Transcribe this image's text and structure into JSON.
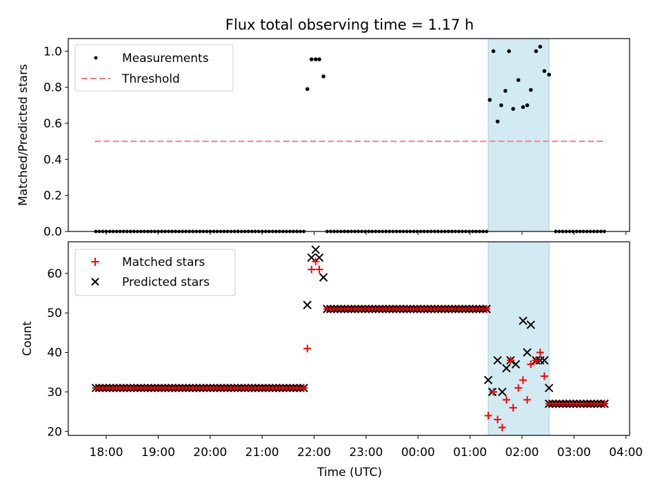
{
  "title": "Flux total observing time = 1.17 h",
  "xlabel": "Time (UTC)",
  "x_ticks": [
    "18:00",
    "19:00",
    "20:00",
    "21:00",
    "22:00",
    "23:00",
    "00:00",
    "01:00",
    "02:00",
    "03:00",
    "04:00"
  ],
  "colors": {
    "shade": "#add8e6",
    "matched": "#ff0000",
    "predicted": "#000000",
    "threshold": "#ff7f7f",
    "measurement": "#000000"
  },
  "chart_data": [
    {
      "type": "scatter",
      "ylabel": "Matched/Predicted stars",
      "ylim": [
        0,
        1.07
      ],
      "yticks": [
        "0.0",
        "0.2",
        "0.4",
        "0.6",
        "0.8",
        "1.0"
      ],
      "legend": [
        "Measurements",
        "Threshold"
      ],
      "legend_position": "top-left",
      "threshold": 0.5,
      "threshold_range_hours": [
        17.78,
        27.62
      ],
      "shaded_range_hours": [
        25.35,
        26.52
      ],
      "segments": {
        "zeros_before": {
          "start_hour": 17.8,
          "step": 0.0667,
          "count": 61,
          "value": 0
        },
        "zeros_middle": {
          "start_hour": 22.25,
          "step": 0.0667,
          "count": 47,
          "value": 0
        },
        "zeros_after": {
          "start_hour": 26.65,
          "step": 0.0667,
          "count": 15,
          "value": 0
        }
      },
      "points": [
        {
          "x": 21.87,
          "y": 0.79
        },
        {
          "x": 21.95,
          "y": 0.955
        },
        {
          "x": 22.03,
          "y": 0.955
        },
        {
          "x": 22.1,
          "y": 0.955
        },
        {
          "x": 22.18,
          "y": 0.86
        },
        {
          "x": 25.38,
          "y": 0.73
        },
        {
          "x": 25.45,
          "y": 1.0
        },
        {
          "x": 25.53,
          "y": 0.61
        },
        {
          "x": 25.6,
          "y": 0.7
        },
        {
          "x": 25.68,
          "y": 0.78
        },
        {
          "x": 25.75,
          "y": 1.0
        },
        {
          "x": 25.83,
          "y": 0.68
        },
        {
          "x": 25.93,
          "y": 0.84
        },
        {
          "x": 26.02,
          "y": 0.69
        },
        {
          "x": 26.1,
          "y": 0.7
        },
        {
          "x": 26.17,
          "y": 0.785
        },
        {
          "x": 26.27,
          "y": 1.0
        },
        {
          "x": 26.35,
          "y": 1.025
        },
        {
          "x": 26.43,
          "y": 0.89
        },
        {
          "x": 26.52,
          "y": 0.87
        }
      ]
    },
    {
      "type": "scatter",
      "ylabel": "Count",
      "ylim": [
        19,
        68
      ],
      "yticks": [
        "20",
        "30",
        "40",
        "50",
        "60"
      ],
      "legend": [
        "Matched stars",
        "Predicted stars"
      ],
      "legend_position": "top-left",
      "shaded_range_hours": [
        25.35,
        26.52
      ],
      "segments": {
        "matched_before": {
          "start_hour": 17.8,
          "step": 0.0667,
          "count": 61,
          "value": 31
        },
        "matched_middle": {
          "start_hour": 22.25,
          "step": 0.0667,
          "count": 47,
          "value": 51
        },
        "matched_after": {
          "start_hour": 26.52,
          "step": 0.0667,
          "count": 17,
          "value": 27
        }
      },
      "matched_points": [
        {
          "x": 21.87,
          "y": 41
        },
        {
          "x": 21.95,
          "y": 61
        },
        {
          "x": 22.03,
          "y": 63
        },
        {
          "x": 22.1,
          "y": 61
        },
        {
          "x": 25.35,
          "y": 24
        },
        {
          "x": 25.45,
          "y": 30
        },
        {
          "x": 25.53,
          "y": 23
        },
        {
          "x": 25.62,
          "y": 21
        },
        {
          "x": 25.7,
          "y": 28
        },
        {
          "x": 25.78,
          "y": 38
        },
        {
          "x": 25.83,
          "y": 26
        },
        {
          "x": 25.93,
          "y": 31
        },
        {
          "x": 26.02,
          "y": 33
        },
        {
          "x": 26.1,
          "y": 28
        },
        {
          "x": 26.17,
          "y": 37
        },
        {
          "x": 26.27,
          "y": 38
        },
        {
          "x": 26.35,
          "y": 40
        },
        {
          "x": 26.43,
          "y": 34
        }
      ],
      "predicted_points": [
        {
          "x": 21.87,
          "y": 52
        },
        {
          "x": 21.95,
          "y": 64
        },
        {
          "x": 22.03,
          "y": 66
        },
        {
          "x": 22.1,
          "y": 64
        },
        {
          "x": 22.18,
          "y": 59
        },
        {
          "x": 25.35,
          "y": 33
        },
        {
          "x": 25.43,
          "y": 30
        },
        {
          "x": 25.53,
          "y": 38
        },
        {
          "x": 25.62,
          "y": 30
        },
        {
          "x": 25.7,
          "y": 36
        },
        {
          "x": 25.78,
          "y": 38
        },
        {
          "x": 25.88,
          "y": 37
        },
        {
          "x": 26.02,
          "y": 48
        },
        {
          "x": 26.1,
          "y": 40
        },
        {
          "x": 26.17,
          "y": 47
        },
        {
          "x": 26.27,
          "y": 38
        },
        {
          "x": 26.35,
          "y": 38
        },
        {
          "x": 26.43,
          "y": 38
        },
        {
          "x": 26.52,
          "y": 31
        }
      ]
    }
  ]
}
